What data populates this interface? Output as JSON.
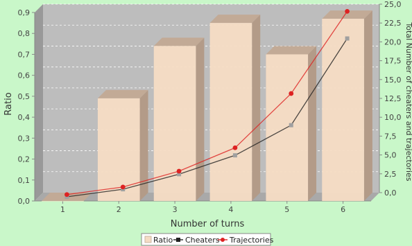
{
  "chart_data": {
    "type": "bar",
    "categories": [
      "1",
      "2",
      "3",
      "4",
      "5",
      "6"
    ],
    "xlabel": "Number of turns",
    "ylabel": "Ratio",
    "y2label": "Total Number of cheaters and trajectories",
    "ylim": [
      0,
      0.9
    ],
    "y2lim": [
      0,
      25
    ],
    "yticks": [
      "0,0",
      "0,1",
      "0,2",
      "0,3",
      "0,4",
      "0,5",
      "0,6",
      "0,7",
      "0,8",
      "0,9"
    ],
    "y2ticks": [
      "0,0",
      "2,5",
      "5,0",
      "7,5",
      "10,0",
      "12,5",
      "15,0",
      "17,5",
      "20,0",
      "22,5",
      "25,0"
    ],
    "grid": true,
    "legend_position": "bottom",
    "series": [
      {
        "name": "Ratio",
        "kind": "bar",
        "axis": "left",
        "color": "#f5dcc4",
        "values": [
          0.0,
          0.49,
          0.74,
          0.85,
          0.7,
          0.87
        ]
      },
      {
        "name": "Cheaters",
        "kind": "line",
        "axis": "right",
        "color": "#222222",
        "marker": "square",
        "values": [
          0.0,
          1.0,
          3.0,
          5.5,
          9.5,
          21.0
        ]
      },
      {
        "name": "Trajectories",
        "kind": "line",
        "axis": "right",
        "color": "#dd2222",
        "marker": "circle",
        "values": [
          0.3,
          1.3,
          3.4,
          6.5,
          13.7,
          24.6
        ]
      }
    ]
  }
}
